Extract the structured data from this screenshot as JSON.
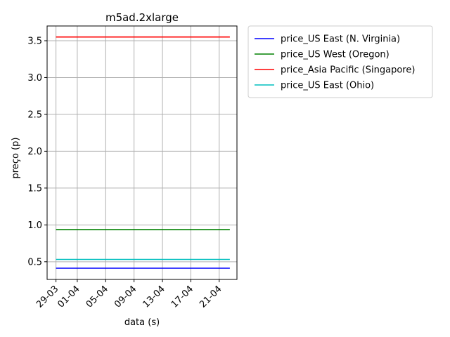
{
  "chart_data": {
    "type": "line",
    "title": "m5ad.2xlarge",
    "xlabel": "data (s)",
    "ylabel": "preço (p)",
    "x_ticks": [
      "29-03",
      "01-04",
      "05-04",
      "09-04",
      "13-04",
      "17-04",
      "21-04"
    ],
    "x_tick_dates": [
      "2022-03-29",
      "2022-04-01",
      "2022-04-05",
      "2022-04-09",
      "2022-04-13",
      "2022-04-17",
      "2022-04-21"
    ],
    "xlim": [
      "2022-03-27 18:00",
      "2022-04-23 12:00"
    ],
    "y_ticks": [
      "0.5",
      "1.0",
      "1.5",
      "2.0",
      "2.5",
      "3.0",
      "3.5"
    ],
    "ylim": [
      0.26,
      3.7
    ],
    "grid": true,
    "legend_position": "outside-right",
    "series": [
      {
        "name": "price_US East (N. Virginia)",
        "color": "#0000ff",
        "x": [
          "2022-03-29",
          "2022-04-22 12:00"
        ],
        "y": [
          0.412,
          0.412
        ]
      },
      {
        "name": "price_US West (Oregon)",
        "color": "#008000",
        "x": [
          "2022-03-29",
          "2022-04-22 12:00"
        ],
        "y": [
          0.936,
          0.936
        ]
      },
      {
        "name": "price_Asia Pacific (Singapore)",
        "color": "#ff0000",
        "x": [
          "2022-03-29",
          "2022-04-22 12:00"
        ],
        "y": [
          3.55,
          3.55
        ]
      },
      {
        "name": "price_US East (Ohio)",
        "color": "#00bfbf",
        "x": [
          "2022-03-29",
          "2022-04-22 12:00"
        ],
        "y": [
          0.532,
          0.532
        ]
      }
    ]
  }
}
